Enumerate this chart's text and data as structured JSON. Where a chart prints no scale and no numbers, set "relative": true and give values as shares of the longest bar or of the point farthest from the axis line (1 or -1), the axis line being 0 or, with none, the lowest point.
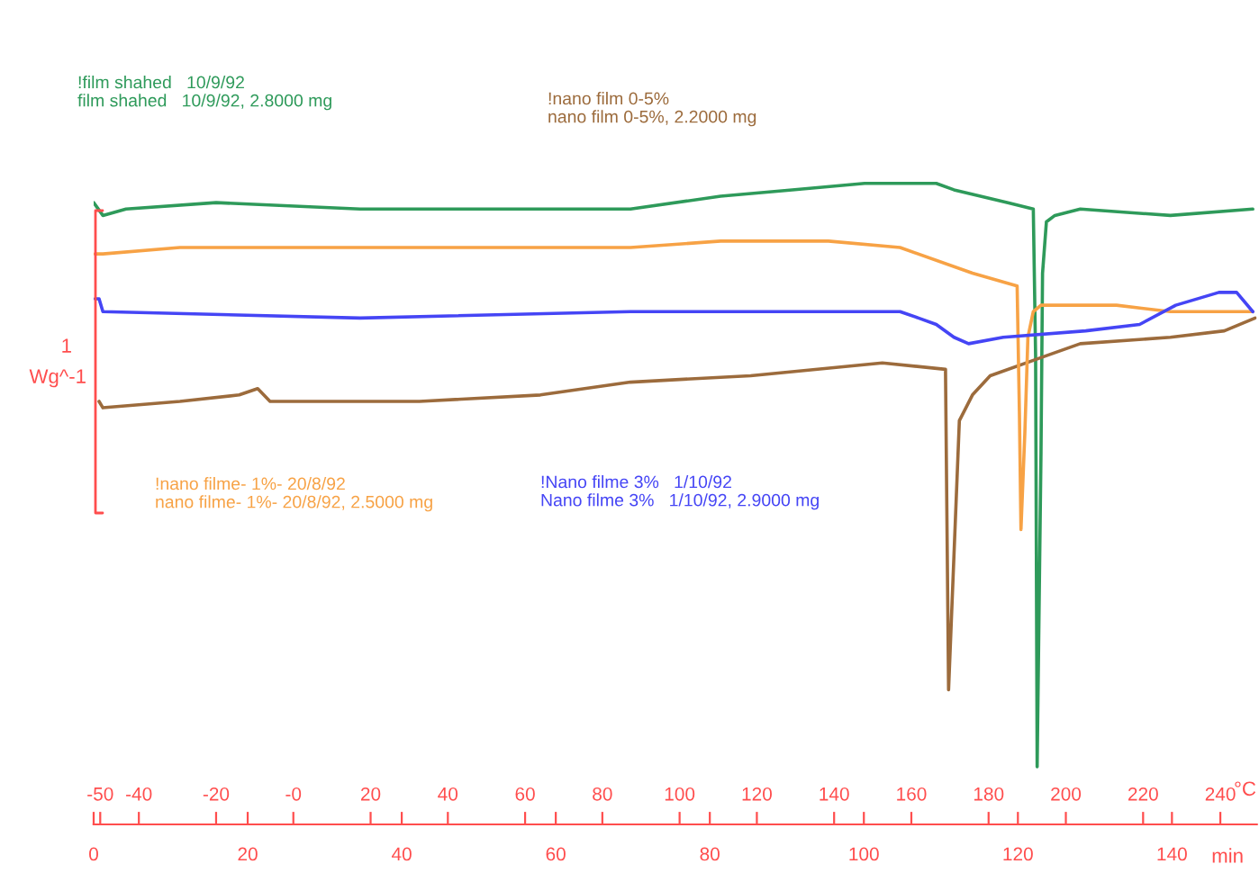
{
  "chart_data": {
    "type": "line",
    "relative": true,
    "xlabel": "min",
    "x2label": "°C",
    "xlim": [
      0,
      151
    ],
    "xticks": [
      0,
      20,
      40,
      60,
      80,
      100,
      120,
      140
    ],
    "x2lim": [
      -51.7,
      249.4
    ],
    "x2ticks": [
      -50,
      -40,
      -20,
      {
        "value": 0,
        "label": "-0"
      },
      20,
      40,
      60,
      80,
      100,
      120,
      140,
      160,
      180,
      200,
      220,
      240
    ],
    "grid": false,
    "marker": "none",
    "line_style": "solid",
    "annotations": [
      "1",
      "Wg^-1"
    ],
    "series": [
      {
        "name": "!film shahed   10/9/92\nfilm shahed   10/9/92, 2.8000 mg",
        "color": "#2e9a5a",
        "x": [
          0,
          1.2,
          4.2,
          15.9,
          34.6,
          58.0,
          69.7,
          81.4,
          90.7,
          100.1,
          109.4,
          111.7,
          118.7,
          122.0,
          122.3,
          122.5,
          123.0,
          123.2,
          123.7,
          124.8,
          128.1,
          139.8,
          150.5
        ],
        "values": [
          0.97,
          0.95,
          0.96,
          0.97,
          0.96,
          0.96,
          0.96,
          0.98,
          0.99,
          1.0,
          1.0,
          0.99,
          0.97,
          0.96,
          0.73,
          0.09,
          0.58,
          0.86,
          0.94,
          0.95,
          0.96,
          0.95,
          0.96
        ]
      },
      {
        "name": "!nano film 0-5%\nnano film 0-5%, 2.2000 mg",
        "color": "#9c6b3c",
        "x": [
          0.7,
          1.2,
          11.2,
          18.9,
          21.3,
          22.9,
          23.6,
          33.0,
          42.3,
          58.0,
          69.7,
          85.3,
          102.4,
          110.6,
          111.0,
          112.4,
          114.1,
          116.4,
          123.4,
          128.1,
          139.8,
          146.8,
          150.8
        ],
        "values": [
          0.66,
          0.65,
          0.66,
          0.67,
          0.68,
          0.66,
          0.66,
          0.66,
          0.66,
          0.67,
          0.69,
          0.7,
          0.72,
          0.71,
          0.21,
          0.63,
          0.67,
          0.7,
          0.73,
          0.75,
          0.76,
          0.77,
          0.79
        ]
      },
      {
        "name": "!nano filme- 1%- 20/8/92\nnano filme- 1%- 20/8/92, 2.5000 mg",
        "color": "#f7a245",
        "x": [
          0.2,
          1.2,
          11.2,
          34.6,
          58.0,
          69.7,
          81.4,
          95.4,
          104.7,
          114.1,
          119.9,
          120.2,
          120.4,
          120.9,
          121.3,
          122.0,
          123.0,
          132.8,
          139.8,
          150.5
        ],
        "values": [
          0.89,
          0.89,
          0.9,
          0.9,
          0.9,
          0.9,
          0.91,
          0.91,
          0.9,
          0.86,
          0.84,
          0.64,
          0.46,
          0.61,
          0.76,
          0.8,
          0.81,
          0.81,
          0.8,
          0.8
        ]
      },
      {
        "name": "!Nano filme 3%   1/10/92\nNano filme 3%   1/10/92, 2.9000 mg",
        "color": "#4545f5",
        "x": [
          0.2,
          0.7,
          1.2,
          34.6,
          69.7,
          104.7,
          107.1,
          109.4,
          111.7,
          113.6,
          118.1,
          128.8,
          135.8,
          140.5,
          146.1,
          148.4,
          150.5
        ],
        "values": [
          0.82,
          0.82,
          0.8,
          0.79,
          0.8,
          0.8,
          0.79,
          0.78,
          0.76,
          0.75,
          0.76,
          0.77,
          0.78,
          0.81,
          0.83,
          0.83,
          0.8
        ]
      }
    ]
  }
}
